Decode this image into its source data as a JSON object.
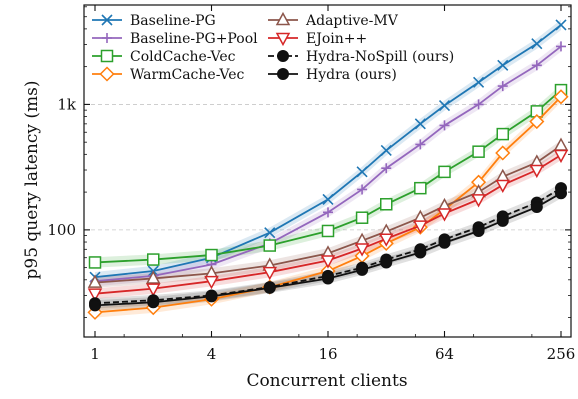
{
  "chart_data": {
    "type": "line",
    "xlabel": "Concurrent clients",
    "ylabel": "p95 query latency (ms)",
    "x_scale": "log2",
    "y_scale": "log10",
    "xlim": [
      1,
      256
    ],
    "ylim": [
      14,
      6200
    ],
    "x_ticks": [
      {
        "value": 1,
        "label": "1"
      },
      {
        "value": 4,
        "label": "4"
      },
      {
        "value": 16,
        "label": "16"
      },
      {
        "value": 64,
        "label": "64"
      },
      {
        "value": 256,
        "label": "256"
      }
    ],
    "y_ticks": [
      {
        "value": 100,
        "label": "100"
      },
      {
        "value": 1000,
        "label": "1k"
      }
    ],
    "grid": "horizontal dashed at major y ticks",
    "legend_position": "top-left",
    "x": [
      1,
      2,
      4,
      8,
      16,
      24,
      32,
      48,
      64,
      96,
      128,
      192,
      256
    ],
    "series": [
      {
        "name": "Baseline-PG",
        "color": "#1f77b4",
        "marker": "x",
        "line_style": "solid",
        "values": [
          42,
          47,
          60,
          95,
          175,
          290,
          430,
          700,
          980,
          1500,
          2050,
          3050,
          4300
        ]
      },
      {
        "name": "Baseline-PG+Pool",
        "color": "#9467bd",
        "marker": "plus",
        "line_style": "solid",
        "values": [
          39,
          43,
          53,
          78,
          138,
          210,
          310,
          480,
          680,
          1000,
          1400,
          2050,
          2900
        ]
      },
      {
        "name": "ColdCache-Vec",
        "color": "#2ca02c",
        "marker": "square-open",
        "line_style": "solid",
        "values": [
          55,
          58,
          63,
          75,
          98,
          125,
          160,
          215,
          290,
          420,
          580,
          880,
          1300
        ]
      },
      {
        "name": "WarmCache-Vec",
        "color": "#ff7f0e",
        "marker": "diamond-open",
        "line_style": "solid",
        "values": [
          22,
          24,
          28,
          35,
          47,
          62,
          78,
          105,
          145,
          240,
          410,
          730,
          1150
        ]
      },
      {
        "name": "Adaptive-MV",
        "color": "#8c564b",
        "marker": "triangle-up-open",
        "line_style": "solid",
        "values": [
          38,
          41,
          45,
          52,
          65,
          82,
          97,
          125,
          155,
          200,
          265,
          345,
          470
        ]
      },
      {
        "name": "EJoin++",
        "color": "#d62728",
        "marker": "triangle-down-open",
        "line_style": "solid",
        "values": [
          31,
          34,
          39,
          46,
          57,
          71,
          85,
          108,
          135,
          175,
          228,
          300,
          395
        ]
      },
      {
        "name": "Hydra-NoSpill (ours)",
        "color": "#111111",
        "marker": "circle-filled",
        "line_style": "dashed",
        "values": [
          26,
          27.5,
          30,
          35,
          43,
          50,
          58,
          70,
          84,
          105,
          128,
          165,
          215
        ]
      },
      {
        "name": "Hydra (ours)",
        "color": "#111111",
        "marker": "circle-filled",
        "line_style": "solid",
        "values": [
          25,
          26.5,
          29.5,
          34.5,
          41,
          48,
          55,
          66,
          79,
          98,
          118,
          152,
          196
        ]
      }
    ]
  }
}
